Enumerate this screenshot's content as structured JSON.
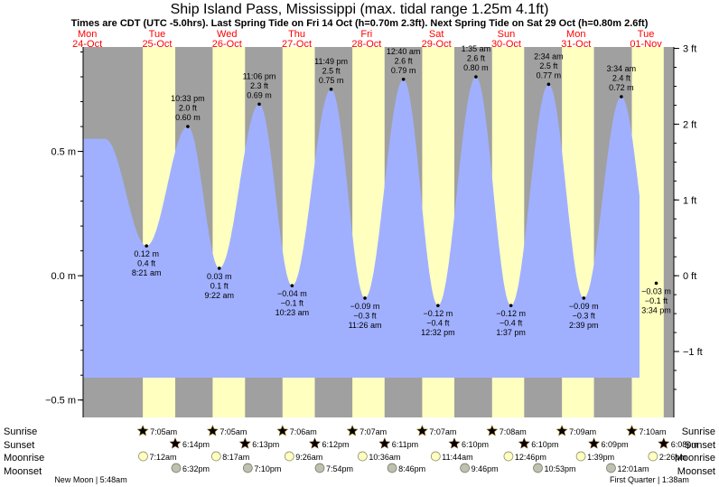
{
  "chart_data": {
    "type": "area",
    "title": "Ship Island Pass, Mississippi (max. tidal range 1.25m 4.1ft)",
    "subtitle": "Times are CDT (UTC -5.0hrs). Last Spring Tide on Fri 14 Oct (h=0.70m 2.3ft). Next Spring Tide on Sat 29 Oct (h=0.80m 2.6ft)",
    "days": [
      {
        "dow": "Mon",
        "date": "24-Oct"
      },
      {
        "dow": "Tue",
        "date": "25-Oct"
      },
      {
        "dow": "Wed",
        "date": "26-Oct"
      },
      {
        "dow": "Thu",
        "date": "27-Oct"
      },
      {
        "dow": "Fri",
        "date": "28-Oct"
      },
      {
        "dow": "Sat",
        "date": "29-Oct"
      },
      {
        "dow": "Sun",
        "date": "30-Oct"
      },
      {
        "dow": "Mon",
        "date": "31-Oct"
      },
      {
        "dow": "Tue",
        "date": "01-Nov"
      }
    ],
    "left_axis": {
      "unit": "m",
      "ticks": [
        "0.5 m",
        "0.0 m",
        "−0.5 m"
      ],
      "values": [
        0.5,
        0.0,
        -0.5
      ]
    },
    "right_axis": {
      "unit": "ft",
      "ticks": [
        "3 ft",
        "2 ft",
        "1 ft",
        "0 ft",
        "−1 ft"
      ],
      "values": [
        3,
        2,
        1,
        0,
        -1
      ]
    },
    "ylim_m": [
      -0.57,
      0.92
    ],
    "extremes": [
      {
        "type": "low",
        "day": 1,
        "time": "8:21 am",
        "h": 0.12,
        "m": "0.12 m",
        "ft": "0.4 ft"
      },
      {
        "type": "high",
        "day": 1,
        "time": "10:33 pm",
        "h": 0.6,
        "m": "0.60 m",
        "ft": "2.0 ft"
      },
      {
        "type": "low",
        "day": 2,
        "time": "9:22 am",
        "h": 0.03,
        "m": "0.03 m",
        "ft": "0.1 ft"
      },
      {
        "type": "high",
        "day": 2,
        "time": "11:06 pm",
        "h": 0.69,
        "m": "0.69 m",
        "ft": "2.3 ft"
      },
      {
        "type": "low",
        "day": 3,
        "time": "10:23 am",
        "h": -0.04,
        "m": "−0.04 m",
        "ft": "−0.1 ft"
      },
      {
        "type": "high",
        "day": 3,
        "time": "11:49 pm",
        "h": 0.75,
        "m": "0.75 m",
        "ft": "2.5 ft"
      },
      {
        "type": "low",
        "day": 4,
        "time": "11:26 am",
        "h": -0.09,
        "m": "−0.09 m",
        "ft": "−0.3 ft"
      },
      {
        "type": "high",
        "day": 5,
        "time": "12:40 am",
        "h": 0.79,
        "m": "0.79 m",
        "ft": "2.6 ft"
      },
      {
        "type": "low",
        "day": 5,
        "time": "12:32 pm",
        "h": -0.12,
        "m": "−0.12 m",
        "ft": "−0.4 ft"
      },
      {
        "type": "high",
        "day": 6,
        "time": "1:35 am",
        "h": 0.8,
        "m": "0.80 m",
        "ft": "2.6 ft"
      },
      {
        "type": "low",
        "day": 6,
        "time": "1:37 pm",
        "h": -0.12,
        "m": "−0.12 m",
        "ft": "−0.4 ft"
      },
      {
        "type": "high",
        "day": 7,
        "time": "2:34 am",
        "h": 0.77,
        "m": "0.77 m",
        "ft": "2.5 ft"
      },
      {
        "type": "low",
        "day": 7,
        "time": "2:39 pm",
        "h": -0.09,
        "m": "−0.09 m",
        "ft": "−0.3 ft"
      },
      {
        "type": "high",
        "day": 8,
        "time": "3:34 am",
        "h": 0.72,
        "m": "0.72 m",
        "ft": "2.4 ft"
      },
      {
        "type": "low",
        "day": 8,
        "time": "3:34 pm",
        "h": -0.03,
        "m": "−0.03 m",
        "ft": "−0.1 ft"
      }
    ],
    "rows": {
      "sunrise": "Sunrise",
      "sunset": "Sunset",
      "moonrise": "Moonrise",
      "moonset": "Moonset"
    },
    "sunrise": [
      "7:05am",
      "7:05am",
      "7:06am",
      "7:07am",
      "7:07am",
      "7:08am",
      "7:09am",
      "7:10am"
    ],
    "sunset": [
      "6:14pm",
      "6:13pm",
      "6:12pm",
      "6:11pm",
      "6:10pm",
      "6:10pm",
      "6:09pm",
      "6:08pm"
    ],
    "moonrise": [
      "7:12am",
      "8:17am",
      "9:26am",
      "10:36am",
      "11:44am",
      "12:46pm",
      "1:39pm",
      "2:26pm"
    ],
    "moonset": [
      "6:32pm",
      "7:10pm",
      "7:54pm",
      "8:46pm",
      "9:46pm",
      "10:53pm",
      "12:01am"
    ],
    "phases": [
      {
        "label": "New Moon | 5:48am",
        "day": 0
      },
      {
        "label": "First Quarter | 1:38am",
        "day": 8
      }
    ],
    "colors": {
      "tide": "#a0b0ff",
      "night": "#a0a0a0",
      "day": "#ffffc0",
      "daylabel": "#ff0000",
      "sun_star": "#f0c000",
      "sunset_star": "#c06000"
    }
  }
}
